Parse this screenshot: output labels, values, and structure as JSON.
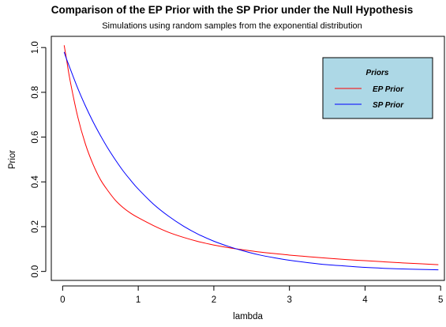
{
  "chart_data": {
    "type": "line",
    "title": "Comparison of the EP Prior with the SP Prior under the Null Hypothesis",
    "subtitle": "Simulations using random samples from the exponential distribution",
    "xlabel": "lambda",
    "ylabel": "Prior",
    "xlim": [
      -0.15,
      5.05
    ],
    "ylim": [
      -0.04,
      1.05
    ],
    "xticks": [
      0,
      1,
      2,
      3,
      4,
      5
    ],
    "yticks": [
      0.0,
      0.2,
      0.4,
      0.6,
      0.8,
      1.0
    ],
    "xtick_labels": [
      "0",
      "1",
      "2",
      "3",
      "4",
      "5"
    ],
    "ytick_labels": [
      "0.0",
      "0.2",
      "0.4",
      "0.6",
      "0.8",
      "1.0"
    ],
    "grid": false,
    "legend": {
      "title": "Priors",
      "placement": "top-right",
      "background": "#add8e6"
    },
    "series": [
      {
        "name": "EP Prior",
        "color": "#ff0000",
        "x": [
          0.02,
          0.05,
          0.1,
          0.2,
          0.3,
          0.4,
          0.5,
          0.6,
          0.7,
          0.8,
          0.9,
          1.0,
          1.2,
          1.4,
          1.6,
          1.8,
          2.0,
          2.2,
          2.4,
          2.6,
          2.8,
          3.0,
          3.25,
          3.5,
          3.75,
          4.0,
          4.25,
          4.5,
          4.75,
          4.97
        ],
        "y": [
          1.01,
          0.95,
          0.85,
          0.69,
          0.57,
          0.48,
          0.41,
          0.36,
          0.317,
          0.285,
          0.26,
          0.24,
          0.205,
          0.175,
          0.152,
          0.133,
          0.118,
          0.106,
          0.096,
          0.087,
          0.08,
          0.073,
          0.066,
          0.059,
          0.053,
          0.048,
          0.043,
          0.038,
          0.034,
          0.03
        ]
      },
      {
        "name": "SP Prior",
        "color": "#0000ff",
        "x": [
          0.02,
          0.05,
          0.1,
          0.2,
          0.3,
          0.4,
          0.5,
          0.6,
          0.7,
          0.8,
          0.9,
          1.0,
          1.2,
          1.4,
          1.6,
          1.8,
          2.0,
          2.2,
          2.4,
          2.6,
          2.8,
          3.0,
          3.25,
          3.5,
          3.75,
          4.0,
          4.25,
          4.5,
          4.75,
          4.97
        ],
        "y": [
          0.98,
          0.95,
          0.905,
          0.818,
          0.74,
          0.67,
          0.607,
          0.549,
          0.497,
          0.449,
          0.407,
          0.368,
          0.301,
          0.247,
          0.202,
          0.165,
          0.135,
          0.111,
          0.091,
          0.074,
          0.061,
          0.05,
          0.039,
          0.03,
          0.024,
          0.018,
          0.014,
          0.011,
          0.009,
          0.007
        ]
      }
    ]
  }
}
